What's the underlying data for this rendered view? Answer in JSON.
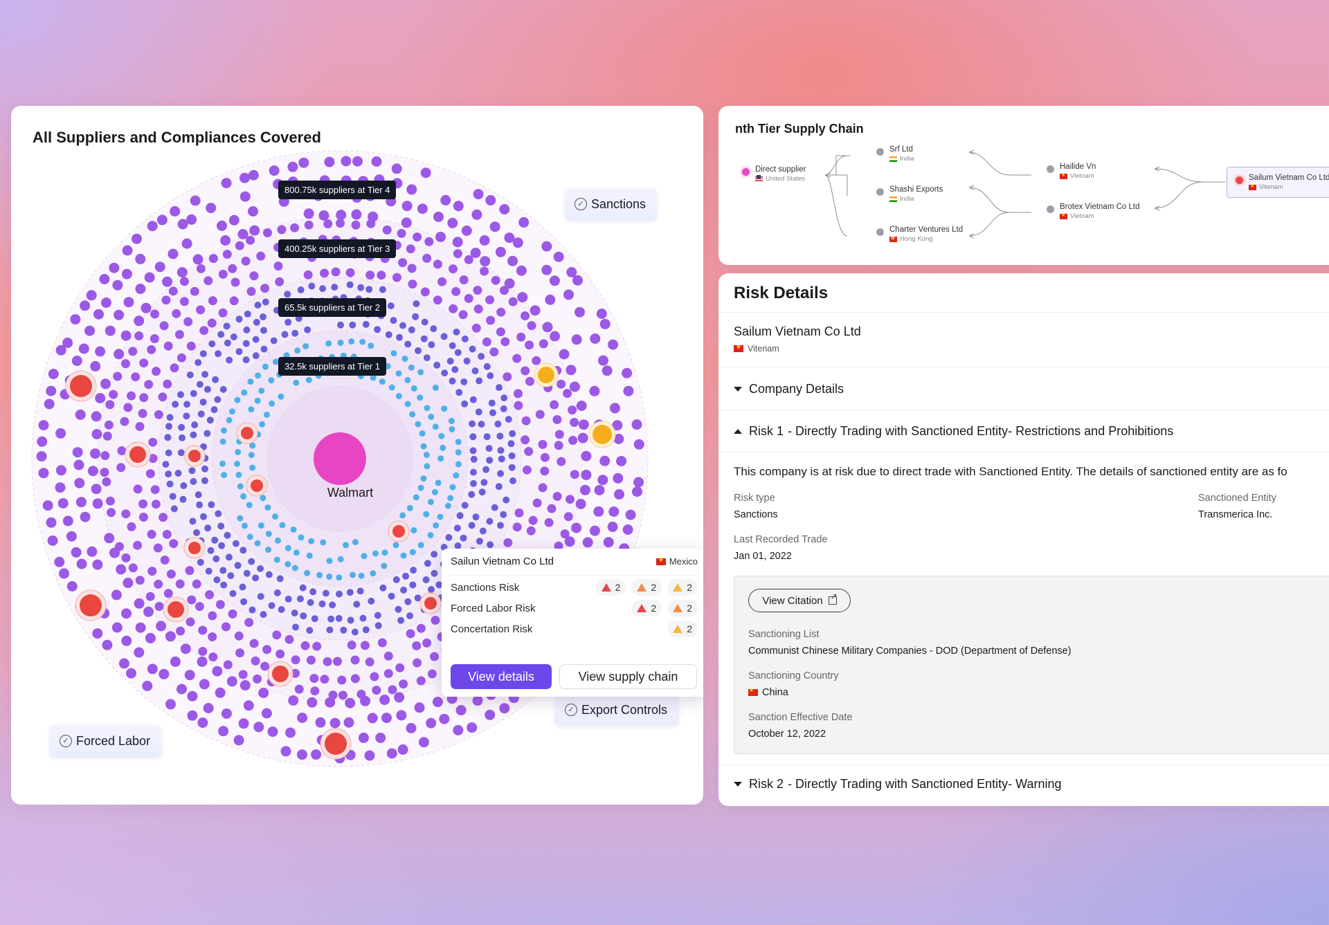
{
  "left_card": {
    "title": "All Suppliers and Compliances Covered",
    "tiers": [
      {
        "label": "800.75k suppliers at Tier 4"
      },
      {
        "label": "400.25k suppliers at Tier 3"
      },
      {
        "label": "65.5k suppliers at Tier 2"
      },
      {
        "label": "32.5k suppliers at Tier 1"
      }
    ],
    "center_label": "Walmart",
    "compliance_tags": {
      "sanctions": "Sanctions",
      "export_controls": "Export Controls",
      "forced_labor": "Forced Labor"
    },
    "colors": {
      "tier4": "#9b59e6",
      "tier3": "#6b5fd8",
      "tier1": "#4fb0e8",
      "center": "#e845c4",
      "risk_red": "#e8463e",
      "risk_yellow": "#f6ad1c"
    }
  },
  "popup": {
    "company": "Sailun Vietnam Co Ltd",
    "country": "Mexico",
    "rows": [
      {
        "label": "Sanctions Risk",
        "badges": [
          {
            "level": "high",
            "count": "2"
          },
          {
            "level": "medium",
            "count": "2"
          },
          {
            "level": "low",
            "count": "2"
          }
        ]
      },
      {
        "label": "Forced Labor Risk",
        "badges": [
          {
            "level": "high",
            "count": "2"
          },
          {
            "level": "low",
            "count": "2"
          }
        ]
      },
      {
        "label": "Concertation Risk",
        "badges": [
          {
            "level": "low",
            "count": "2"
          }
        ]
      }
    ],
    "view_details": "View details",
    "view_supply_chain": "View supply chain"
  },
  "tier_chain": {
    "title": "nth Tier Supply Chain",
    "nodes": {
      "direct": {
        "name": "Direct supplier",
        "country": "United States"
      },
      "srf": {
        "name": "Srf Ltd",
        "country": "India"
      },
      "shashi": {
        "name": "Shashi Exports",
        "country": "India"
      },
      "charter": {
        "name": "Charter Ventures Ltd",
        "country": "Hong Kong"
      },
      "hailide": {
        "name": "Hailide Vn",
        "country": "Vietnam"
      },
      "brotex": {
        "name": "Brotex Vietnam Co Ltd",
        "country": "Vietnam"
      },
      "sailum": {
        "name": "Sailum Vietnam Co Ltd",
        "country": "Vitenam"
      }
    }
  },
  "risk_details": {
    "title": "Risk Details",
    "company": "Sailum Vietnam Co Ltd",
    "company_country": "Vitenam",
    "company_details_label": "Company Details",
    "risk1": {
      "prefix": "Risk 1",
      "title": "- Directly Trading with Sanctioned Entity- Restrictions and Prohibitions"
    },
    "description": "This company is at risk due to direct trade with Sanctioned Entity. The details of sanctioned entity are as fo",
    "risk_type_label": "Risk type",
    "risk_type_value": "Sanctions",
    "sanctioned_entity_label": "Sanctioned Entity",
    "sanctioned_entity_value": "Transmerica Inc.",
    "last_trade_label": "Last Recorded Trade",
    "last_trade_value": "Jan 01, 2022",
    "citation": {
      "button": "View Citation",
      "list_label": "Sanctioning List",
      "list_value": "Communist Chinese Military Companies - DOD (Department of Defense)",
      "country_label": "Sanctioning Country",
      "country_value": "China",
      "date_label": "Sanction Effective Date",
      "date_value": "October 12, 2022"
    },
    "risk2": {
      "prefix": "Risk 2",
      "title": "- Directly Trading with Sanctioned Entity- Warning"
    }
  }
}
